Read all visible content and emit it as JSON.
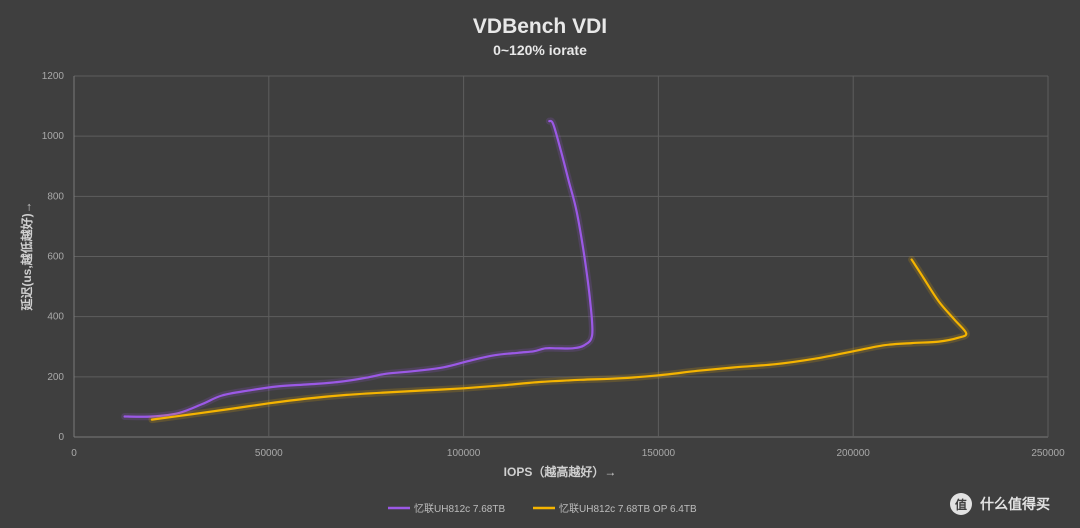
{
  "chart_data": {
    "type": "line",
    "title": "VDBench VDI",
    "subtitle": "0~120% iorate",
    "xlabel": "IOPS（越高越好）→",
    "ylabel": "延迟(us,越低越好)→",
    "xlim": [
      0,
      250000
    ],
    "ylim": [
      0,
      1200
    ],
    "xticks": [
      0,
      50000,
      100000,
      150000,
      200000,
      250000
    ],
    "xtick_labels": [
      "0",
      "50000",
      "100000",
      "150000",
      "200000",
      "250000"
    ],
    "yticks": [
      0,
      200,
      400,
      600,
      800,
      1000,
      1200
    ],
    "ytick_labels": [
      "0",
      "200",
      "400",
      "600",
      "800",
      "1000",
      "1200"
    ],
    "grid": true,
    "legend_position": "bottom",
    "series": [
      {
        "name": "忆联UH812c 7.68TB",
        "color": "#9b59e6",
        "points": [
          [
            13000,
            68
          ],
          [
            20000,
            68
          ],
          [
            27000,
            80
          ],
          [
            33000,
            110
          ],
          [
            38000,
            138
          ],
          [
            45000,
            155
          ],
          [
            52000,
            168
          ],
          [
            60000,
            175
          ],
          [
            68000,
            183
          ],
          [
            75000,
            197
          ],
          [
            80000,
            210
          ],
          [
            88000,
            220
          ],
          [
            95000,
            232
          ],
          [
            102000,
            255
          ],
          [
            108000,
            272
          ],
          [
            114000,
            280
          ],
          [
            118000,
            285
          ],
          [
            121000,
            295
          ],
          [
            124000,
            295
          ],
          [
            128000,
            295
          ],
          [
            131000,
            305
          ],
          [
            133000,
            340
          ],
          [
            132500,
            450
          ],
          [
            131000,
            600
          ],
          [
            129000,
            750
          ],
          [
            127000,
            850
          ],
          [
            125000,
            950
          ],
          [
            123000,
            1040
          ],
          [
            122000,
            1050
          ]
        ]
      },
      {
        "name": "忆联UH812c 7.68TB OP 6.4TB",
        "color": "#f5b400",
        "points": [
          [
            20000,
            58
          ],
          [
            30000,
            75
          ],
          [
            40000,
            93
          ],
          [
            50000,
            112
          ],
          [
            60000,
            128
          ],
          [
            70000,
            140
          ],
          [
            80000,
            148
          ],
          [
            90000,
            155
          ],
          [
            100000,
            162
          ],
          [
            110000,
            172
          ],
          [
            120000,
            183
          ],
          [
            130000,
            190
          ],
          [
            140000,
            195
          ],
          [
            150000,
            205
          ],
          [
            160000,
            220
          ],
          [
            170000,
            232
          ],
          [
            180000,
            242
          ],
          [
            190000,
            260
          ],
          [
            200000,
            285
          ],
          [
            208000,
            305
          ],
          [
            215000,
            312
          ],
          [
            222000,
            317
          ],
          [
            227000,
            330
          ],
          [
            229000,
            345
          ],
          [
            226000,
            390
          ],
          [
            222000,
            450
          ],
          [
            218000,
            530
          ],
          [
            216000,
            570
          ],
          [
            215000,
            590
          ]
        ]
      }
    ]
  },
  "watermark": {
    "text": "什么值得买",
    "logo_glyph": "值"
  }
}
